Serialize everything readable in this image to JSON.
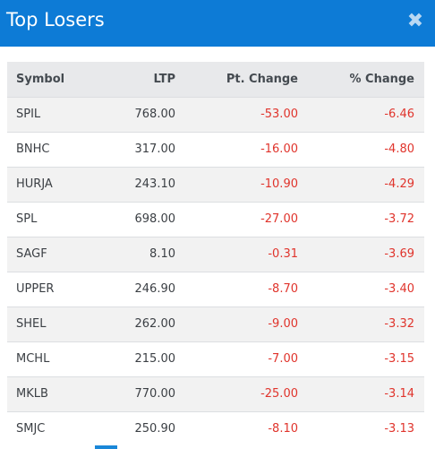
{
  "modal": {
    "title": "Top Losers",
    "close_glyph": "✖",
    "close_icon": "close-icon"
  },
  "columns": {
    "symbol": "Symbol",
    "ltp": "LTP",
    "pt_change": "Pt. Change",
    "pct_change": "% Change"
  },
  "rows": [
    {
      "symbol": "SPIL",
      "ltp": "768.00",
      "pt_change": "-53.00",
      "pct_change": "-6.46"
    },
    {
      "symbol": "BNHC",
      "ltp": "317.00",
      "pt_change": "-16.00",
      "pct_change": "-4.80"
    },
    {
      "symbol": "HURJA",
      "ltp": "243.10",
      "pt_change": "-10.90",
      "pct_change": "-4.29"
    },
    {
      "symbol": "SPL",
      "ltp": "698.00",
      "pt_change": "-27.00",
      "pct_change": "-3.72"
    },
    {
      "symbol": "SAGF",
      "ltp": "8.10",
      "pt_change": "-0.31",
      "pct_change": "-3.69"
    },
    {
      "symbol": "UPPER",
      "ltp": "246.90",
      "pt_change": "-8.70",
      "pct_change": "-3.40"
    },
    {
      "symbol": "SHEL",
      "ltp": "262.00",
      "pt_change": "-9.00",
      "pct_change": "-3.32"
    },
    {
      "symbol": "MCHL",
      "ltp": "215.00",
      "pt_change": "-7.00",
      "pct_change": "-3.15"
    },
    {
      "symbol": "MKLB",
      "ltp": "770.00",
      "pt_change": "-25.00",
      "pct_change": "-3.14"
    },
    {
      "symbol": "SMJC",
      "ltp": "250.90",
      "pt_change": "-8.10",
      "pct_change": "-3.13"
    }
  ],
  "colors": {
    "header_bg": "#0d7bd6",
    "negative": "#e0342c",
    "table_header_bg": "#e8e9eb",
    "row_stripe": "#f2f2f2"
  }
}
